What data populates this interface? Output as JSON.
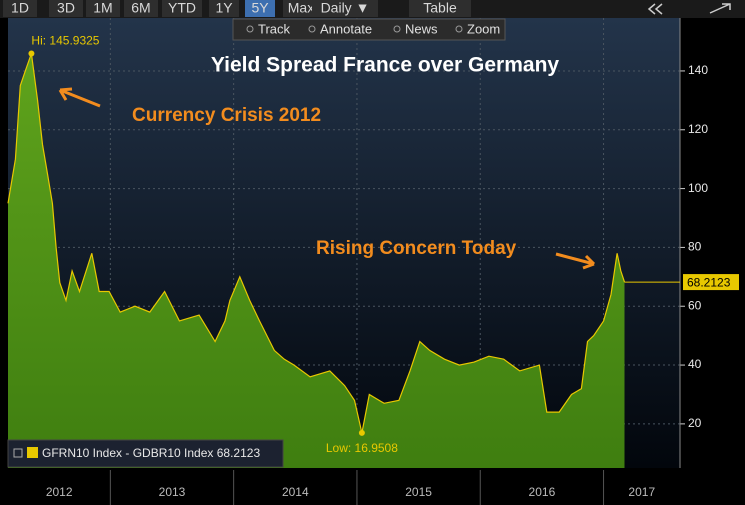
{
  "toolbar": {
    "ranges": [
      "1D",
      "3D",
      "1M",
      "6M",
      "YTD",
      "1Y",
      "5Y",
      "Max",
      "Daily ▼",
      "Table"
    ],
    "active_index": 6,
    "tools": [
      "Track",
      "Annotate",
      "News",
      "Zoom"
    ]
  },
  "chart_data": {
    "type": "area",
    "title": "Yield Spread France over Germany",
    "annotations": {
      "crisis": "Currency Crisis 2012",
      "concern": "Rising Concern Today",
      "high": "Hi: 145.9325",
      "low": "Low: 16.9508",
      "last": "68.2123"
    },
    "x": [
      2012.17,
      2012.23,
      2012.27,
      2012.31,
      2012.36,
      2012.41,
      2012.45,
      2012.49,
      2012.53,
      2012.56,
      2012.59,
      2012.64,
      2012.69,
      2012.75,
      2012.85,
      2012.91,
      2012.99,
      2013.08,
      2013.2,
      2013.32,
      2013.44,
      2013.56,
      2013.72,
      2013.85,
      2013.93,
      2013.97,
      2014.05,
      2014.13,
      2014.21,
      2014.33,
      2014.41,
      2014.49,
      2014.62,
      2014.78,
      2014.9,
      2014.98,
      2015.04,
      2015.1,
      2015.22,
      2015.34,
      2015.43,
      2015.51,
      2015.59,
      2015.71,
      2015.83,
      2015.95,
      2016.07,
      2016.19,
      2016.32,
      2016.48,
      2016.54,
      2016.64,
      2016.74,
      2016.82,
      2016.87,
      2016.92,
      2017.0,
      2017.06,
      2017.11,
      2017.14,
      2017.17
    ],
    "series": [
      {
        "name": "GFRN10 Index - GDBR10 Index 68.2123",
        "color": "#e8c800",
        "fill": "#4f8f14",
        "values": [
          95,
          110,
          135,
          140,
          145.9325,
          130,
          115,
          105,
          95,
          80,
          68,
          62,
          72,
          65,
          78,
          65,
          65,
          58,
          60,
          58,
          65,
          55,
          57,
          48,
          55,
          62,
          70,
          62,
          55,
          45,
          42,
          40,
          36,
          38,
          33,
          28,
          16.9508,
          30,
          27,
          28,
          38,
          48,
          45,
          42,
          40,
          41,
          43,
          42,
          38,
          40,
          24,
          24,
          30,
          32,
          48,
          50,
          55,
          64,
          78,
          72,
          68.2123
        ]
      }
    ],
    "xlim": [
      2012.17,
      2017.62
    ],
    "xticks": [
      2012,
      2013,
      2014,
      2015,
      2016,
      2017
    ],
    "ylim": [
      5,
      158
    ],
    "yticks": [
      20,
      40,
      60,
      80,
      100,
      120,
      140
    ],
    "grid": true
  }
}
